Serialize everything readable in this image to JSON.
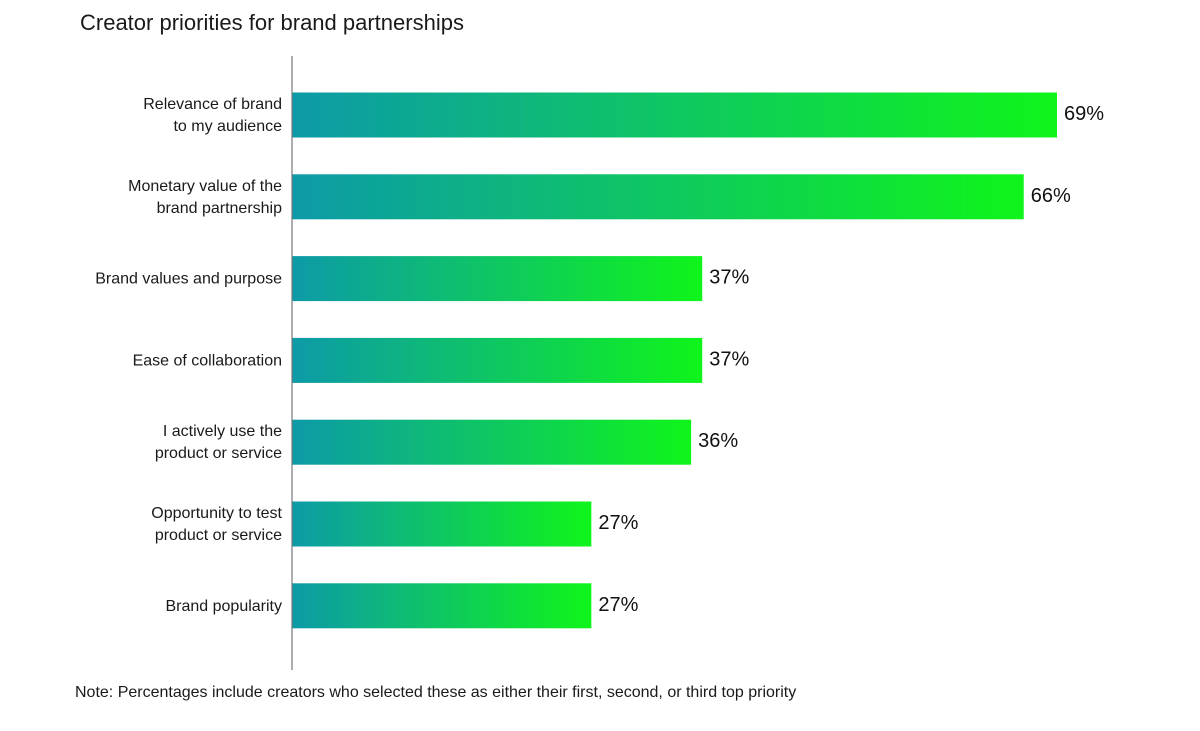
{
  "title": "Creator priorities for brand partnerships",
  "note": "Note: Percentages include creators who selected these as either their first, second, or third top priority",
  "colors": {
    "bar_start": "#0d9aa8",
    "bar_end": "#0ff51a",
    "axis": "#777777"
  },
  "chart_data": {
    "type": "bar",
    "orientation": "horizontal",
    "title": "Creator priorities for brand partnerships",
    "categories": [
      [
        "Relevance of brand",
        "to my audience"
      ],
      [
        "Monetary value of the",
        "brand partnership"
      ],
      [
        "Brand values and purpose"
      ],
      [
        "Ease of collaboration"
      ],
      [
        "I actively use the",
        "product or service"
      ],
      [
        "Opportunity to test",
        "product or service"
      ],
      [
        "Brand popularity"
      ]
    ],
    "values": [
      69,
      66,
      37,
      37,
      36,
      27,
      27
    ],
    "value_labels": [
      "69%",
      "66%",
      "37%",
      "37%",
      "36%",
      "27%",
      "27%"
    ],
    "unit": "%",
    "xlim": [
      0,
      69
    ],
    "grid": false,
    "legend": "none"
  }
}
